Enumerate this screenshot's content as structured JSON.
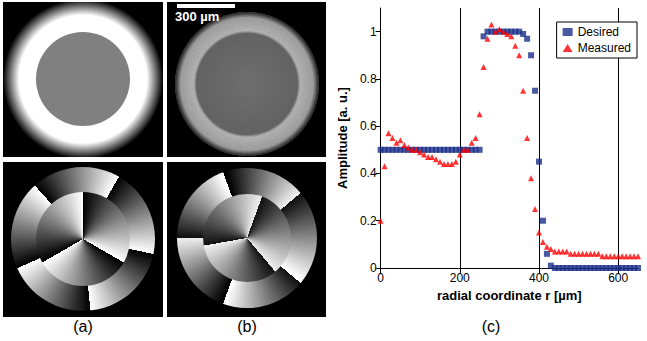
{
  "panels": [
    {
      "label": "(a)"
    },
    {
      "label": "(b)",
      "scale_bar": "300 µm"
    },
    {
      "label": "(c)"
    }
  ],
  "chart_data": {
    "type": "scatter",
    "xlabel": "radial coordinate r [µm]",
    "ylabel": "Amplitude [a. u.]",
    "x": [
      0,
      10,
      20,
      30,
      40,
      50,
      60,
      70,
      80,
      90,
      100,
      110,
      120,
      130,
      140,
      150,
      160,
      170,
      180,
      190,
      200,
      210,
      220,
      230,
      240,
      250,
      260,
      270,
      280,
      290,
      300,
      310,
      320,
      330,
      340,
      350,
      360,
      370,
      380,
      390,
      400,
      410,
      420,
      430,
      440,
      450,
      460,
      470,
      480,
      490,
      500,
      510,
      520,
      530,
      540,
      550,
      560,
      570,
      580,
      590,
      600,
      610,
      620,
      630,
      640,
      650
    ],
    "series": [
      {
        "name": "Desired",
        "color": "#1a2f8a",
        "marker": "square",
        "values": [
          0.5,
          0.5,
          0.5,
          0.5,
          0.5,
          0.5,
          0.5,
          0.5,
          0.5,
          0.5,
          0.5,
          0.5,
          0.5,
          0.5,
          0.5,
          0.5,
          0.5,
          0.5,
          0.5,
          0.5,
          0.5,
          0.5,
          0.5,
          0.5,
          0.5,
          0.5,
          0.98,
          1.0,
          1.0,
          1.0,
          1.0,
          1.0,
          1.0,
          1.0,
          1.0,
          1.0,
          0.99,
          0.97,
          0.9,
          0.75,
          0.45,
          0.2,
          0.06,
          0.01,
          0,
          0,
          0,
          0,
          0,
          0,
          0,
          0,
          0,
          0,
          0,
          0,
          0,
          0,
          0,
          0,
          0,
          0,
          0,
          0,
          0,
          0
        ]
      },
      {
        "name": "Measured",
        "color": "#ff0000",
        "marker": "triangle",
        "values": [
          0.2,
          0.43,
          0.57,
          0.55,
          0.53,
          0.54,
          0.52,
          0.51,
          0.5,
          0.5,
          0.49,
          0.48,
          0.47,
          0.47,
          0.46,
          0.45,
          0.44,
          0.44,
          0.44,
          0.45,
          0.48,
          0.5,
          0.5,
          0.53,
          0.55,
          0.65,
          0.85,
          0.97,
          1.03,
          1.0,
          1.01,
          1.0,
          0.99,
          0.98,
          0.94,
          0.9,
          0.75,
          0.55,
          0.38,
          0.25,
          0.15,
          0.11,
          0.09,
          0.08,
          0.07,
          0.07,
          0.07,
          0.07,
          0.06,
          0.06,
          0.06,
          0.06,
          0.06,
          0.06,
          0.06,
          0.06,
          0.05,
          0.05,
          0.05,
          0.05,
          0.05,
          0.05,
          0.05,
          0.05,
          0.05,
          0.05
        ]
      }
    ],
    "xlim": [
      0,
      650
    ],
    "xticks": [
      0,
      200,
      400,
      600
    ],
    "ylim": [
      0,
      1.1
    ],
    "yticks": [
      0,
      0.2,
      0.4,
      0.6,
      0.8,
      1
    ],
    "grid": "x",
    "legend": "top-right"
  }
}
